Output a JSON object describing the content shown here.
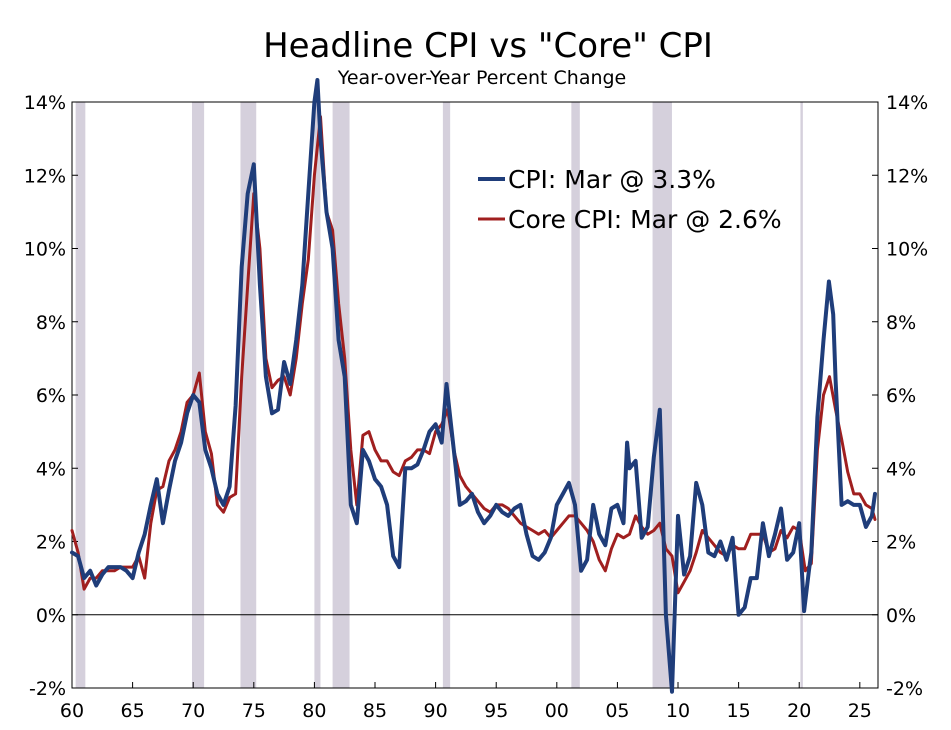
{
  "chart_data": {
    "type": "line",
    "title": "Headline CPI vs \"Core\" CPI",
    "subtitle": "Year-over-Year Percent Change",
    "xlabel": "",
    "ylabel": "",
    "xlim": [
      1960,
      2026.5
    ],
    "ylim": [
      -2,
      14
    ],
    "y_ticks": [
      14,
      12,
      10,
      8,
      6,
      4,
      2,
      0,
      -2
    ],
    "y_tick_labels": [
      "14%",
      "12%",
      "10%",
      "8%",
      "6%",
      "4%",
      "2%",
      "0%",
      "-2%"
    ],
    "x_ticks": [
      1960,
      1965,
      1970,
      1975,
      1980,
      1985,
      1990,
      1995,
      2000,
      2005,
      2010,
      2015,
      2020,
      2025
    ],
    "x_tick_labels": [
      "60",
      "65",
      "70",
      "75",
      "80",
      "85",
      "90",
      "95",
      "00",
      "05",
      "10",
      "15",
      "20",
      "25"
    ],
    "grid": false,
    "legend_position": "top-right",
    "recessions": [
      [
        1960.3,
        1961.1
      ],
      [
        1969.9,
        1970.9
      ],
      [
        1973.9,
        1975.2
      ],
      [
        1980.0,
        1980.5
      ],
      [
        1981.5,
        1982.9
      ],
      [
        1990.6,
        1991.2
      ],
      [
        2001.2,
        2001.9
      ],
      [
        2007.9,
        2009.5
      ],
      [
        2020.1,
        2020.3
      ]
    ],
    "series": [
      {
        "name": "CPI: Mar @ 3.3%",
        "color": "#1f3d7a",
        "x": [
          1960.0,
          1960.5,
          1961.0,
          1961.5,
          1962.0,
          1962.5,
          1963.0,
          1963.5,
          1964.0,
          1964.5,
          1965.0,
          1965.5,
          1966.0,
          1966.5,
          1967.0,
          1967.5,
          1968.0,
          1968.5,
          1969.0,
          1969.5,
          1970.0,
          1970.5,
          1971.0,
          1971.5,
          1972.0,
          1972.5,
          1973.0,
          1973.5,
          1974.0,
          1974.5,
          1975.0,
          1975.5,
          1976.0,
          1976.5,
          1977.0,
          1977.5,
          1978.0,
          1978.5,
          1979.0,
          1979.5,
          1980.0,
          1980.25,
          1980.5,
          1981.0,
          1981.5,
          1982.0,
          1982.5,
          1983.0,
          1983.5,
          1984.0,
          1984.5,
          1985.0,
          1985.5,
          1986.0,
          1986.5,
          1987.0,
          1987.5,
          1988.0,
          1988.5,
          1989.0,
          1989.5,
          1990.0,
          1990.5,
          1990.9,
          1991.5,
          1992.0,
          1992.5,
          1993.0,
          1993.5,
          1994.0,
          1994.5,
          1995.0,
          1995.5,
          1996.0,
          1996.5,
          1997.0,
          1997.5,
          1998.0,
          1998.5,
          1999.0,
          1999.5,
          2000.0,
          2000.5,
          2001.0,
          2001.5,
          2002.0,
          2002.5,
          2003.0,
          2003.5,
          2004.0,
          2004.5,
          2005.0,
          2005.5,
          2005.8,
          2006.0,
          2006.5,
          2007.0,
          2007.5,
          2008.0,
          2008.5,
          2009.0,
          2009.5,
          2010.0,
          2010.5,
          2011.0,
          2011.5,
          2012.0,
          2012.5,
          2013.0,
          2013.5,
          2014.0,
          2014.5,
          2015.0,
          2015.5,
          2016.0,
          2016.5,
          2017.0,
          2017.5,
          2018.0,
          2018.5,
          2019.0,
          2019.5,
          2020.0,
          2020.4,
          2020.8,
          2021.0,
          2021.5,
          2022.0,
          2022.45,
          2022.8,
          2023.0,
          2023.5,
          2024.0,
          2024.5,
          2025.0,
          2025.5,
          2026.0,
          2026.25
        ],
        "values": [
          1.7,
          1.6,
          1.0,
          1.2,
          0.8,
          1.1,
          1.3,
          1.3,
          1.3,
          1.2,
          1.0,
          1.7,
          2.2,
          3.0,
          3.7,
          2.5,
          3.4,
          4.2,
          4.7,
          5.5,
          6.0,
          5.8,
          4.5,
          4.0,
          3.3,
          3.0,
          3.5,
          5.7,
          9.5,
          11.5,
          12.3,
          9.0,
          6.5,
          5.5,
          5.6,
          6.9,
          6.3,
          7.5,
          9.0,
          11.5,
          14.0,
          14.6,
          13.0,
          11.0,
          10.0,
          7.5,
          6.5,
          3.0,
          2.5,
          4.5,
          4.2,
          3.7,
          3.5,
          3.0,
          1.6,
          1.3,
          4.0,
          4.0,
          4.1,
          4.5,
          5.0,
          5.2,
          4.7,
          6.3,
          4.5,
          3.0,
          3.1,
          3.3,
          2.8,
          2.5,
          2.7,
          3.0,
          2.8,
          2.7,
          2.9,
          3.0,
          2.2,
          1.6,
          1.5,
          1.7,
          2.1,
          3.0,
          3.3,
          3.6,
          3.0,
          1.2,
          1.5,
          3.0,
          2.2,
          1.9,
          2.9,
          3.0,
          2.5,
          4.7,
          4.0,
          4.2,
          2.1,
          2.4,
          4.3,
          5.6,
          0.0,
          -2.1,
          2.7,
          1.1,
          1.6,
          3.6,
          3.0,
          1.7,
          1.6,
          2.0,
          1.5,
          2.1,
          0.0,
          0.2,
          1.0,
          1.0,
          2.5,
          1.6,
          2.2,
          2.9,
          1.5,
          1.7,
          2.5,
          0.1,
          1.2,
          1.7,
          5.4,
          7.5,
          9.1,
          8.2,
          6.4,
          3.0,
          3.1,
          3.0,
          3.0,
          2.4,
          2.7,
          3.3
        ]
      },
      {
        "name": "Core CPI: Mar @ 2.6%",
        "color": "#a01f1f",
        "x": [
          1960.0,
          1960.5,
          1961.0,
          1961.5,
          1962.0,
          1962.5,
          1963.0,
          1963.5,
          1964.0,
          1964.5,
          1965.0,
          1965.5,
          1966.0,
          1966.5,
          1967.0,
          1967.5,
          1968.0,
          1968.5,
          1969.0,
          1969.5,
          1970.0,
          1970.5,
          1971.0,
          1971.5,
          1972.0,
          1972.5,
          1973.0,
          1973.5,
          1974.0,
          1974.5,
          1975.0,
          1975.5,
          1976.0,
          1976.5,
          1977.0,
          1977.5,
          1978.0,
          1978.5,
          1979.0,
          1979.5,
          1980.0,
          1980.5,
          1981.0,
          1981.5,
          1982.0,
          1982.5,
          1983.0,
          1983.5,
          1984.0,
          1984.5,
          1985.0,
          1985.5,
          1986.0,
          1986.5,
          1987.0,
          1987.5,
          1988.0,
          1988.5,
          1989.0,
          1989.5,
          1990.0,
          1990.5,
          1991.0,
          1991.5,
          1992.0,
          1992.5,
          1993.0,
          1993.5,
          1994.0,
          1994.5,
          1995.0,
          1995.5,
          1996.0,
          1996.5,
          1997.0,
          1997.5,
          1998.0,
          1998.5,
          1999.0,
          1999.5,
          2000.0,
          2000.5,
          2001.0,
          2001.5,
          2002.0,
          2002.5,
          2003.0,
          2003.5,
          2004.0,
          2004.5,
          2005.0,
          2005.5,
          2006.0,
          2006.5,
          2007.0,
          2007.5,
          2008.0,
          2008.5,
          2009.0,
          2009.5,
          2010.0,
          2010.5,
          2011.0,
          2011.5,
          2012.0,
          2012.5,
          2013.0,
          2013.5,
          2014.0,
          2014.5,
          2015.0,
          2015.5,
          2016.0,
          2016.5,
          2017.0,
          2017.5,
          2018.0,
          2018.5,
          2019.0,
          2019.5,
          2020.0,
          2020.5,
          2021.0,
          2021.5,
          2022.0,
          2022.5,
          2023.0,
          2023.5,
          2024.0,
          2024.5,
          2025.0,
          2025.5,
          2026.0,
          2026.25
        ],
        "values": [
          2.3,
          1.7,
          0.7,
          1.0,
          1.0,
          1.2,
          1.2,
          1.2,
          1.3,
          1.3,
          1.3,
          1.6,
          1.0,
          2.5,
          3.4,
          3.5,
          4.2,
          4.5,
          5.0,
          5.8,
          6.0,
          6.6,
          5.0,
          4.4,
          3.0,
          2.8,
          3.2,
          3.3,
          6.5,
          9.0,
          11.5,
          10.0,
          7.0,
          6.2,
          6.4,
          6.5,
          6.0,
          7.0,
          8.5,
          9.7,
          12.0,
          13.6,
          11.0,
          10.5,
          8.5,
          7.0,
          4.5,
          3.0,
          4.9,
          5.0,
          4.5,
          4.2,
          4.2,
          3.9,
          3.8,
          4.2,
          4.3,
          4.5,
          4.5,
          4.4,
          5.0,
          5.2,
          5.6,
          4.5,
          3.8,
          3.5,
          3.3,
          3.1,
          2.9,
          2.8,
          3.0,
          3.0,
          2.9,
          2.7,
          2.5,
          2.4,
          2.3,
          2.2,
          2.3,
          2.1,
          2.3,
          2.5,
          2.7,
          2.7,
          2.5,
          2.3,
          2.0,
          1.5,
          1.2,
          1.8,
          2.2,
          2.1,
          2.2,
          2.7,
          2.4,
          2.2,
          2.3,
          2.5,
          1.8,
          1.6,
          0.6,
          0.9,
          1.2,
          1.7,
          2.3,
          2.1,
          1.9,
          1.7,
          1.6,
          1.9,
          1.8,
          1.8,
          2.2,
          2.2,
          2.2,
          1.7,
          1.8,
          2.3,
          2.1,
          2.4,
          2.3,
          1.2,
          1.4,
          4.5,
          6.0,
          6.5,
          5.6,
          4.8,
          3.9,
          3.3,
          3.3,
          3.0,
          2.9,
          2.6
        ]
      }
    ]
  }
}
